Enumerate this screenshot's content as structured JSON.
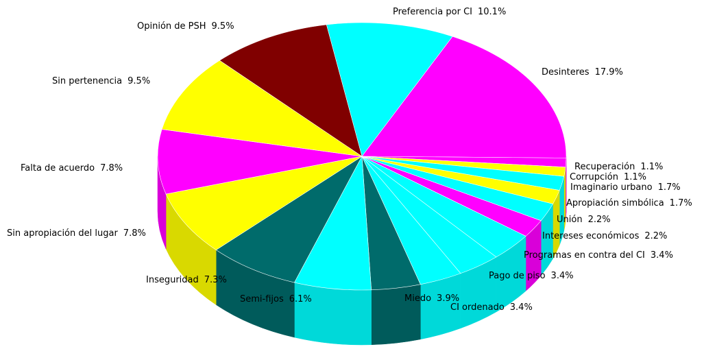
{
  "chart_data": {
    "type": "pie",
    "categories": [
      "Preferencia por CI",
      "Desinteres",
      "Recuperación",
      "Corrupción",
      "Imaginario urbano",
      "Apropiación simbólica",
      "Unión",
      "Intereses económicos",
      "Programas en contra del CI",
      "Pago de piso",
      "CI ordenado",
      "Miedo",
      "Semi-fijos",
      "Inseguridad",
      "Sin apropiación del lugar",
      "Falta de acuerdo",
      "Sin pertenencia",
      "Opinión de PSH"
    ],
    "values": [
      10.1,
      17.9,
      1.1,
      1.1,
      1.7,
      1.7,
      2.2,
      2.2,
      3.4,
      3.4,
      3.4,
      3.9,
      6.1,
      7.3,
      7.8,
      7.8,
      9.5,
      9.5
    ],
    "value_labels": [
      "10.1%",
      "17.9%",
      "1.1%",
      "1.1%",
      "1.7%",
      "1.7%",
      "2.2%",
      "2.2%",
      "3.4%",
      "3.4%",
      "3.4%",
      "3.9%",
      "6.1%",
      "7.3%",
      "7.8%",
      "7.8%",
      "9.5%",
      "9.5%"
    ],
    "colors": [
      "#00ffff",
      "#ff00ff",
      "#ff00ff",
      "#ffff00",
      "#00ffff",
      "#ffff00",
      "#00ffff",
      "#ff00ff",
      "#00ffff",
      "#00ffff",
      "#00ffff",
      "#006b6b",
      "#00ffff",
      "#006b6b",
      "#ffff00",
      "#ff00ff",
      "#ffff00",
      "#800000"
    ]
  }
}
